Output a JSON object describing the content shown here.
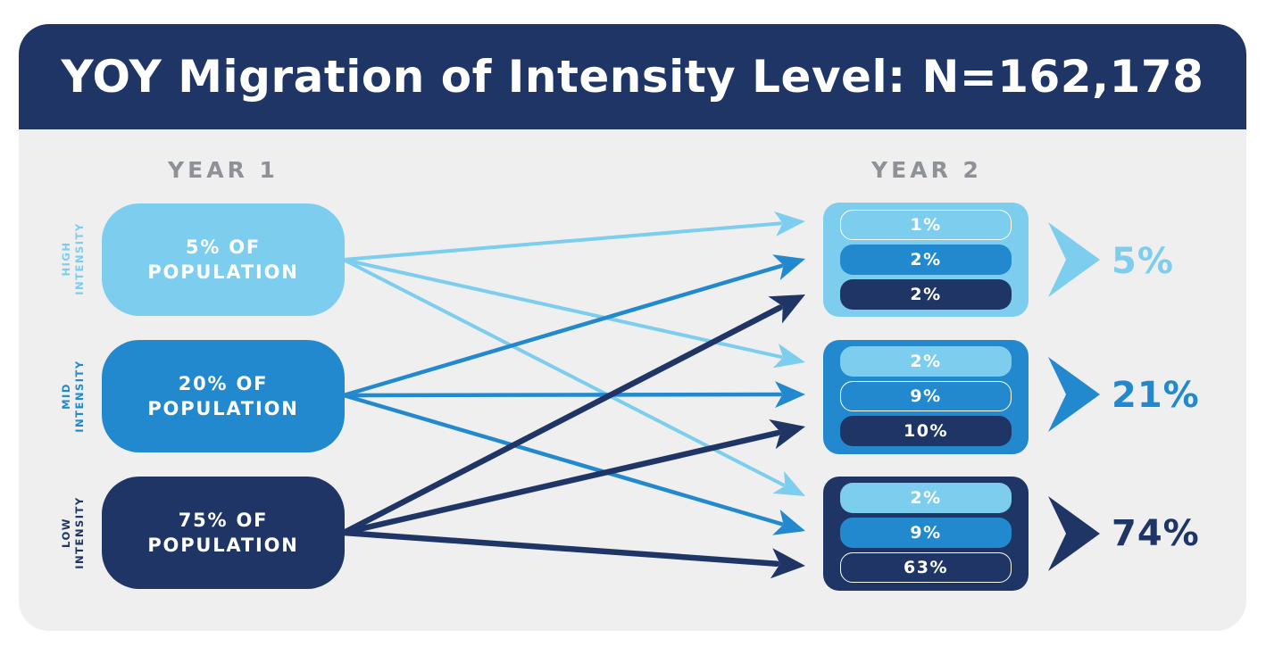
{
  "title": "YOY Migration of Intensity Level: N=162,178",
  "year1_label": "YEAR 1",
  "year2_label": "YEAR 2",
  "colors": {
    "high": "#7ccdee",
    "mid": "#2289cf",
    "low": "#1f3566",
    "header": "#1f3566",
    "panel": "#efeff0"
  },
  "levels": [
    {
      "key": "high",
      "side_label": "HIGH\nINTENSITY",
      "population_label": "5% OF POPULATION",
      "breakdown": [
        "1%",
        "2%",
        "2%"
      ],
      "total": "5%"
    },
    {
      "key": "mid",
      "side_label": "MID\nINTENSITY",
      "population_label": "20% OF POPULATION",
      "breakdown": [
        "2%",
        "9%",
        "10%"
      ],
      "total": "21%"
    },
    {
      "key": "low",
      "side_label": "LOW\nINTENSITY",
      "population_label": "75% OF POPULATION",
      "breakdown": [
        "2%",
        "9%",
        "63%"
      ],
      "total": "74%"
    }
  ],
  "flows": [
    {
      "from": "high",
      "to": "high"
    },
    {
      "from": "high",
      "to": "mid"
    },
    {
      "from": "high",
      "to": "low"
    },
    {
      "from": "mid",
      "to": "high"
    },
    {
      "from": "mid",
      "to": "mid"
    },
    {
      "from": "mid",
      "to": "low"
    },
    {
      "from": "low",
      "to": "high"
    },
    {
      "from": "low",
      "to": "mid"
    },
    {
      "from": "low",
      "to": "low"
    }
  ]
}
